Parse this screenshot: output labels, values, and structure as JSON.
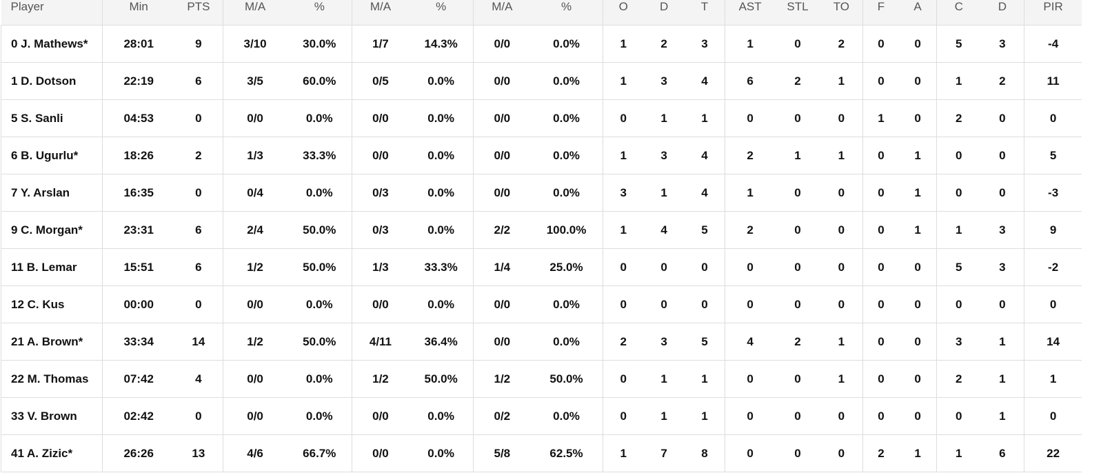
{
  "accent_color": "#6b4fd6",
  "headers": [
    "Player",
    "Min",
    "PTS",
    "M/A",
    "%",
    "M/A",
    "%",
    "M/A",
    "%",
    "O",
    "D",
    "T",
    "AST",
    "STL",
    "TO",
    "F",
    "A",
    "C",
    "D",
    "PIR"
  ],
  "rows": [
    [
      "0 J. Mathews*",
      "28:01",
      "9",
      "3/10",
      "30.0%",
      "1/7",
      "14.3%",
      "0/0",
      "0.0%",
      "1",
      "2",
      "3",
      "1",
      "0",
      "2",
      "0",
      "0",
      "5",
      "3",
      "-4"
    ],
    [
      "1 D. Dotson",
      "22:19",
      "6",
      "3/5",
      "60.0%",
      "0/5",
      "0.0%",
      "0/0",
      "0.0%",
      "1",
      "3",
      "4",
      "6",
      "2",
      "1",
      "0",
      "0",
      "1",
      "2",
      "11"
    ],
    [
      "5 S. Sanli",
      "04:53",
      "0",
      "0/0",
      "0.0%",
      "0/0",
      "0.0%",
      "0/0",
      "0.0%",
      "0",
      "1",
      "1",
      "0",
      "0",
      "0",
      "1",
      "0",
      "2",
      "0",
      "0"
    ],
    [
      "6 B. Ugurlu*",
      "18:26",
      "2",
      "1/3",
      "33.3%",
      "0/0",
      "0.0%",
      "0/0",
      "0.0%",
      "1",
      "3",
      "4",
      "2",
      "1",
      "1",
      "0",
      "1",
      "0",
      "0",
      "5"
    ],
    [
      "7 Y. Arslan",
      "16:35",
      "0",
      "0/4",
      "0.0%",
      "0/3",
      "0.0%",
      "0/0",
      "0.0%",
      "3",
      "1",
      "4",
      "1",
      "0",
      "0",
      "0",
      "1",
      "0",
      "0",
      "-3"
    ],
    [
      "9 C. Morgan*",
      "23:31",
      "6",
      "2/4",
      "50.0%",
      "0/3",
      "0.0%",
      "2/2",
      "100.0%",
      "1",
      "4",
      "5",
      "2",
      "0",
      "0",
      "0",
      "1",
      "1",
      "3",
      "9"
    ],
    [
      "11 B. Lemar",
      "15:51",
      "6",
      "1/2",
      "50.0%",
      "1/3",
      "33.3%",
      "1/4",
      "25.0%",
      "0",
      "0",
      "0",
      "0",
      "0",
      "0",
      "0",
      "0",
      "5",
      "3",
      "-2"
    ],
    [
      "12 C. Kus",
      "00:00",
      "0",
      "0/0",
      "0.0%",
      "0/0",
      "0.0%",
      "0/0",
      "0.0%",
      "0",
      "0",
      "0",
      "0",
      "0",
      "0",
      "0",
      "0",
      "0",
      "0",
      "0"
    ],
    [
      "21 A. Brown*",
      "33:34",
      "14",
      "1/2",
      "50.0%",
      "4/11",
      "36.4%",
      "0/0",
      "0.0%",
      "2",
      "3",
      "5",
      "4",
      "2",
      "1",
      "0",
      "0",
      "3",
      "1",
      "14"
    ],
    [
      "22 M. Thomas",
      "07:42",
      "4",
      "0/0",
      "0.0%",
      "1/2",
      "50.0%",
      "1/2",
      "50.0%",
      "0",
      "1",
      "1",
      "0",
      "0",
      "1",
      "0",
      "0",
      "2",
      "1",
      "1"
    ],
    [
      "33 V. Brown",
      "02:42",
      "0",
      "0/0",
      "0.0%",
      "0/0",
      "0.0%",
      "0/2",
      "0.0%",
      "0",
      "1",
      "1",
      "0",
      "0",
      "0",
      "0",
      "0",
      "0",
      "1",
      "0"
    ],
    [
      "41 A. Zizic*",
      "26:26",
      "13",
      "4/6",
      "66.7%",
      "0/0",
      "0.0%",
      "5/8",
      "62.5%",
      "1",
      "7",
      "8",
      "0",
      "0",
      "0",
      "2",
      "1",
      "1",
      "6",
      "22"
    ]
  ]
}
